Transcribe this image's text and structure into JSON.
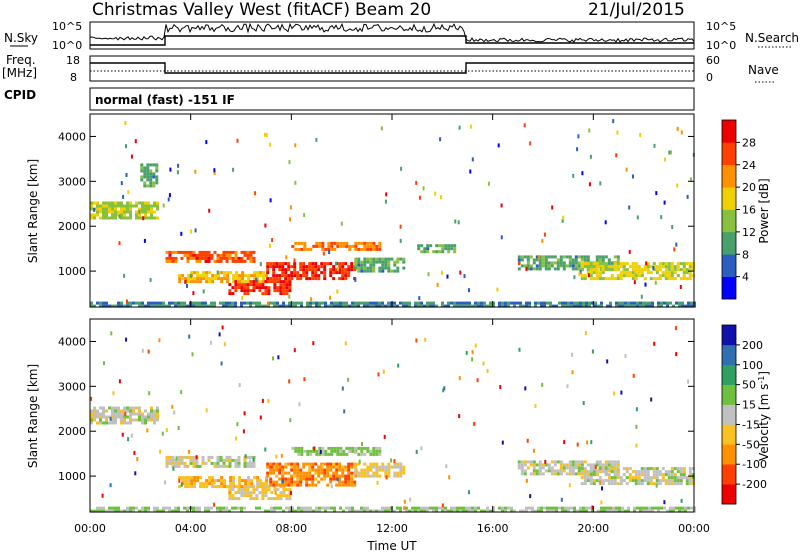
{
  "header": {
    "title": "Christmas Valley West (fitACF)",
    "beam": "Beam 20",
    "date": "21/Jul/2015"
  },
  "panels": {
    "nsky": {
      "label": "N.Sky",
      "ticks": [
        "10^5",
        "10^0"
      ],
      "right_label": "N.Search",
      "right_ticks": [
        "10^5",
        "10^0"
      ]
    },
    "freq": {
      "label_top": "Freq.",
      "label_unit": "[MHz]",
      "ticks": [
        "18",
        "8"
      ],
      "right_label": "Nave",
      "right_ticks": [
        "60",
        "0"
      ]
    },
    "cpid": {
      "label": "CPID",
      "mode": "normal (fast) -151 IF"
    }
  },
  "chart_data": [
    {
      "type": "heatmap",
      "title": "Power",
      "ylabel": "Slant Range [km]",
      "yticks": [
        "1000",
        "2000",
        "3000",
        "4000"
      ],
      "ylim": [
        200,
        4500
      ],
      "xlim": [
        0,
        24
      ],
      "colorbar": {
        "label": "Power [dB]",
        "ticks": [
          "4",
          "8",
          "12",
          "16",
          "20",
          "24",
          "28"
        ],
        "range": [
          0,
          30
        ]
      },
      "bands": [
        {
          "t0": 0.0,
          "t1": 2.7,
          "r0": 2200,
          "r1": 2550,
          "v": 14
        },
        {
          "t0": 2.0,
          "t1": 2.7,
          "r0": 2900,
          "r1": 3400,
          "v": 10
        },
        {
          "t0": 3.0,
          "t1": 6.5,
          "r0": 1200,
          "r1": 1450,
          "v": 24
        },
        {
          "t0": 3.5,
          "t1": 7.0,
          "r0": 750,
          "r1": 1000,
          "v": 18
        },
        {
          "t0": 5.5,
          "t1": 8.0,
          "r0": 500,
          "r1": 800,
          "v": 26
        },
        {
          "t0": 7.0,
          "t1": 10.5,
          "r0": 800,
          "r1": 1200,
          "v": 26
        },
        {
          "t0": 8.0,
          "t1": 11.5,
          "r0": 1450,
          "r1": 1650,
          "v": 22
        },
        {
          "t0": 10.5,
          "t1": 12.5,
          "r0": 1000,
          "r1": 1300,
          "v": 10
        },
        {
          "t0": 13.0,
          "t1": 14.5,
          "r0": 1450,
          "r1": 1600,
          "v": 10
        },
        {
          "t0": 17.0,
          "t1": 21.0,
          "r0": 1050,
          "r1": 1350,
          "v": 10
        },
        {
          "t0": 19.5,
          "t1": 24.0,
          "r0": 800,
          "r1": 1200,
          "v": 16
        },
        {
          "t0": 0.0,
          "t1": 24.0,
          "r0": 200,
          "r1": 320,
          "v": 8
        }
      ]
    },
    {
      "type": "heatmap",
      "title": "Velocity",
      "ylabel": "Slant Range [km]",
      "yticks": [
        "1000",
        "2000",
        "3000",
        "4000"
      ],
      "ylim": [
        200,
        4500
      ],
      "xlim": [
        0,
        24
      ],
      "colorbar": {
        "label": "Velocity [m s^-1]",
        "ticks": [
          "200",
          "100",
          "50",
          "15",
          "-15",
          "-50",
          "-100",
          "-200"
        ],
        "range": [
          -250,
          250
        ]
      },
      "bands": [
        {
          "t0": 0.0,
          "t1": 2.7,
          "r0": 2200,
          "r1": 2550,
          "v": 0
        },
        {
          "t0": 3.0,
          "t1": 6.5,
          "r0": 1200,
          "r1": 1450,
          "v": 0
        },
        {
          "t0": 3.5,
          "t1": 7.0,
          "r0": 750,
          "r1": 1000,
          "v": -60
        },
        {
          "t0": 5.5,
          "t1": 8.0,
          "r0": 500,
          "r1": 800,
          "v": -40
        },
        {
          "t0": 7.0,
          "t1": 10.5,
          "r0": 800,
          "r1": 1300,
          "v": -120
        },
        {
          "t0": 8.0,
          "t1": 11.5,
          "r0": 1450,
          "r1": 1650,
          "v": 40
        },
        {
          "t0": 10.5,
          "t1": 12.5,
          "r0": 1000,
          "r1": 1300,
          "v": -40
        },
        {
          "t0": 17.0,
          "t1": 21.0,
          "r0": 1050,
          "r1": 1350,
          "v": 0
        },
        {
          "t0": 19.5,
          "t1": 24.0,
          "r0": 800,
          "r1": 1200,
          "v": 0
        },
        {
          "t0": 0.0,
          "t1": 24.0,
          "r0": 200,
          "r1": 320,
          "v": 30
        }
      ]
    }
  ],
  "xaxis": {
    "ticks": [
      "00:00",
      "04:00",
      "08:00",
      "12:00",
      "16:00",
      "20:00",
      "00:00"
    ],
    "label": "Time UT"
  },
  "colors": {
    "power": [
      "#0000ff",
      "#2a5fbf",
      "#4aa06a",
      "#88c040",
      "#f0d000",
      "#ff9000",
      "#ff4000",
      "#ee0000"
    ],
    "velocity": [
      "#ee0000",
      "#ff4000",
      "#ff9000",
      "#f8c020",
      "#c0c0c0",
      "#70c040",
      "#30a060",
      "#3070b0",
      "#1010aa"
    ]
  }
}
